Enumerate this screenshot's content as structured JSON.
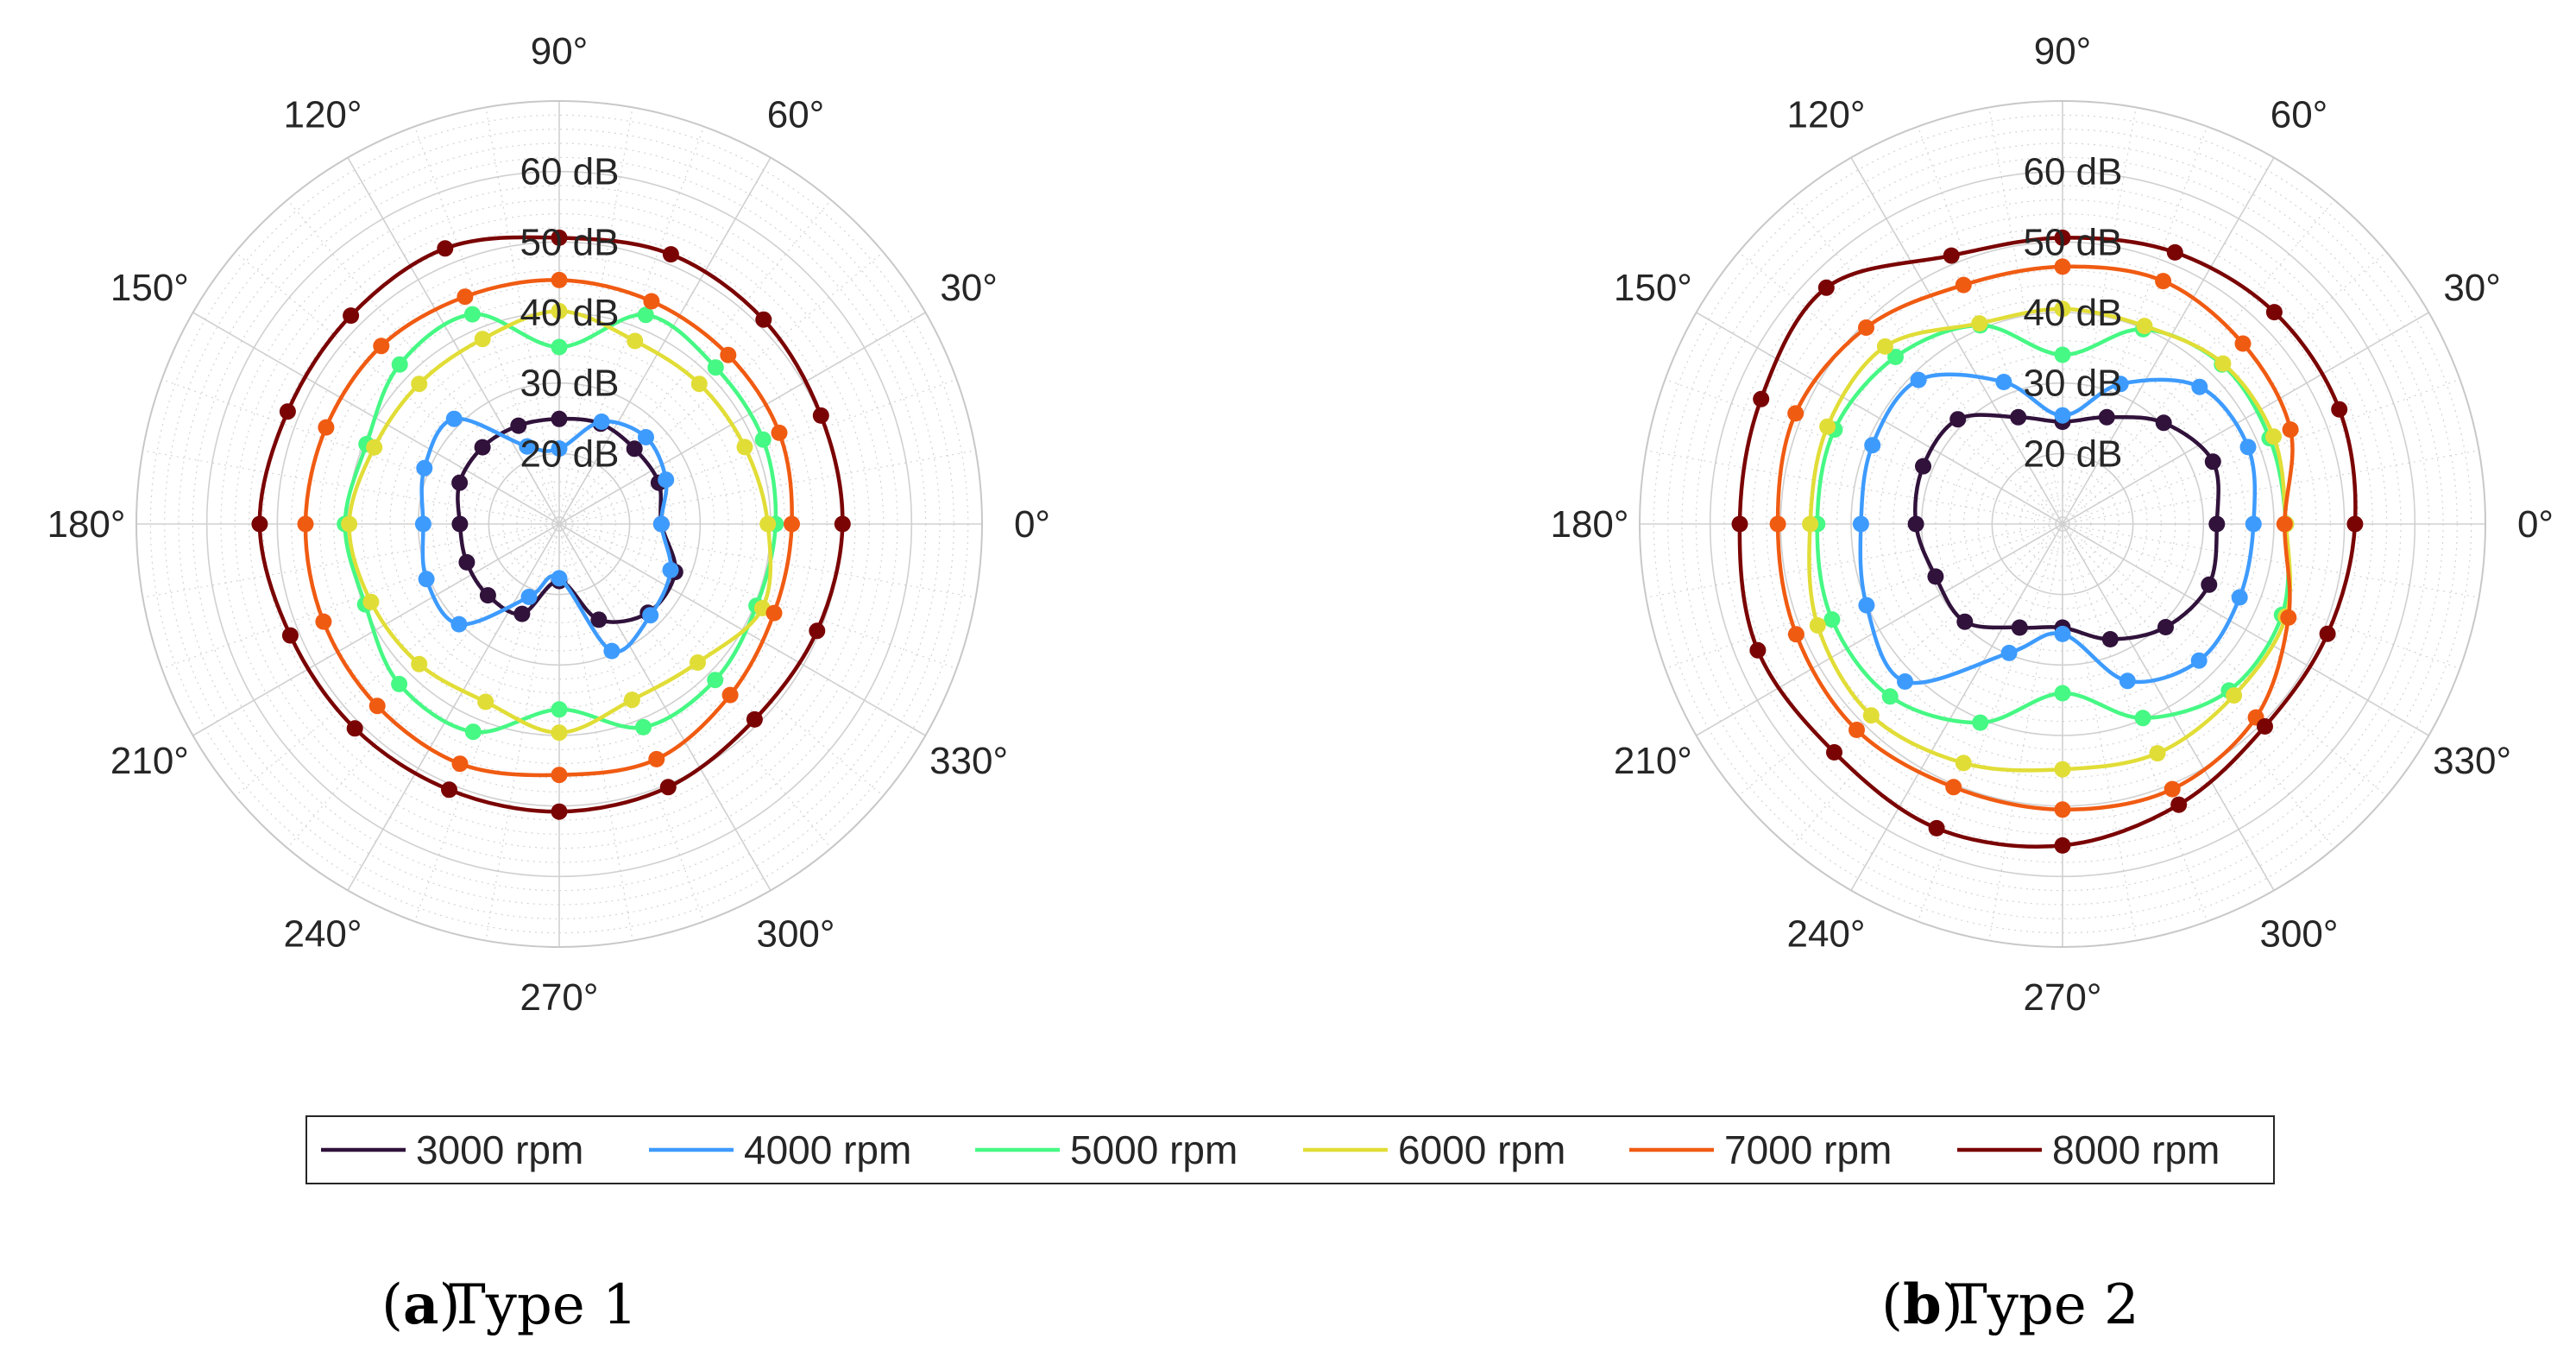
{
  "chart_data": [
    {
      "type": "polar-line",
      "panel_label": "(a)",
      "caption": "Type 1",
      "theta_unit": "deg",
      "theta": [
        0,
        22.5,
        45,
        67.5,
        90,
        112.5,
        135,
        157.5,
        180,
        202.5,
        225,
        247.5,
        270,
        292.5,
        315,
        337.5
      ],
      "rlim": [
        10,
        70
      ],
      "r_ticks": [
        20,
        30,
        40,
        50,
        60
      ],
      "r_tick_labels": [
        "20 dB",
        "30 dB",
        "40 dB",
        "50 dB",
        "60 dB"
      ],
      "theta_ticks": [
        0,
        30,
        60,
        90,
        120,
        150,
        180,
        210,
        240,
        270,
        300,
        330
      ],
      "theta_tick_labels": [
        "0°",
        "30°",
        "60°",
        "90°",
        "120°",
        "150°",
        "180°",
        "210°",
        "240°",
        "270°",
        "300°",
        "330°"
      ],
      "series": [
        {
          "name": "3000 rpm",
          "color": "#30123b",
          "values": [
            24.5,
            25.3,
            25.1,
            25.4,
            24.9,
            25.1,
            25.4,
            25.3,
            24.1,
            24.2,
            24.3,
            23.8,
            18.1,
            24.7,
            27.8,
            27.8
          ]
        },
        {
          "name": "4000 rpm",
          "color": "#3e9bfe",
          "values": [
            24.5,
            26.4,
            27.4,
            25.7,
            20.7,
            21.9,
            31.1,
            30.7,
            29.3,
            30.4,
            30.1,
            21.2,
            17.7,
            29.5,
            28.3,
            27.1
          ]
        },
        {
          "name": "5000 rpm",
          "color": "#46f884",
          "values": [
            40.7,
            41.3,
            41.4,
            42.1,
            35.1,
            42.2,
            42.0,
            39.6,
            40.4,
            39.8,
            42.1,
            41.9,
            36.3,
            41.2,
            41.3,
            40.3
          ]
        },
        {
          "name": "6000 rpm",
          "color": "#e1dd37",
          "values": [
            39.6,
            38.5,
            38.1,
            38.1,
            40.2,
            38.4,
            38.1,
            38.4,
            39.8,
            38.9,
            38.1,
            37.3,
            39.6,
            37.0,
            37.8,
            41.2
          ]
        },
        {
          "name": "7000 rpm",
          "color": "#f05b12",
          "values": [
            43.0,
            43.8,
            43.9,
            44.2,
            44.6,
            44.9,
            45.7,
            45.8,
            46.0,
            46.2,
            46.5,
            46.8,
            45.6,
            46.1,
            44.3,
            43.0
          ]
        },
        {
          "name": "8000 rpm",
          "color": "#7a0403",
          "values": [
            50.2,
            50.2,
            51.0,
            51.4,
            50.6,
            52.3,
            51.8,
            51.7,
            52.5,
            51.3,
            51.0,
            50.8,
            50.8,
            50.4,
            49.2,
            49.6
          ]
        }
      ]
    },
    {
      "type": "polar-line",
      "panel_label": "(b)",
      "caption": "Type 2",
      "theta_unit": "deg",
      "theta": [
        0,
        22.5,
        45,
        67.5,
        90,
        112.5,
        135,
        157.5,
        180,
        202.5,
        225,
        247.5,
        270,
        292.5,
        315,
        337.5
      ],
      "rlim": [
        10,
        70
      ],
      "r_ticks": [
        20,
        30,
        40,
        50,
        60
      ],
      "r_tick_labels": [
        "20 dB",
        "30 dB",
        "40 dB",
        "50 dB",
        "60 dB"
      ],
      "theta_ticks": [
        0,
        30,
        60,
        90,
        120,
        150,
        180,
        210,
        240,
        270,
        300,
        330
      ],
      "theta_tick_labels": [
        "0°",
        "30°",
        "60°",
        "90°",
        "120°",
        "150°",
        "180°",
        "210°",
        "240°",
        "270°",
        "300°",
        "330°"
      ],
      "series": [
        {
          "name": "3000 rpm",
          "color": "#30123b",
          "values": [
            31.9,
            33.1,
            30.3,
            26.4,
            24.5,
            26.4,
            31.0,
            31.4,
            30.8,
            29.5,
            29.6,
            25.9,
            24.7,
            27.7,
            30.7,
            32.5
          ]
        },
        {
          "name": "4000 rpm",
          "color": "#3e9bfe",
          "values": [
            37.1,
            38.5,
            37.5,
            31.5,
            25.4,
            31.8,
            38.9,
            39.2,
            38.6,
            40.1,
            41.6,
            29.8,
            25.6,
            34.1,
            37.4,
            37.2
          ]
        },
        {
          "name": "5000 rpm",
          "color": "#46f884",
          "values": [
            41.7,
            41.8,
            42.0,
            39.9,
            34.0,
            40.5,
            43.5,
            45.0,
            44.8,
            45.4,
            44.6,
            40.5,
            34.0,
            39.8,
            43.4,
            43.7
          ]
        },
        {
          "name": "6000 rpm",
          "color": "#e1dd37",
          "values": [
            41.7,
            42.4,
            42.2,
            40.4,
            40.5,
            40.8,
            45.6,
            46.1,
            45.8,
            47.6,
            48.4,
            46.7,
            44.8,
            45.2,
            44.4,
            44.3
          ]
        },
        {
          "name": "7000 rpm",
          "color": "#f05b12",
          "values": [
            41.5,
            45.0,
            46.2,
            47.3,
            46.5,
            46.7,
            49.4,
            51.0,
            50.4,
            50.9,
            51.3,
            50.4,
            50.5,
            50.7,
            48.8,
            44.7
          ]
        },
        {
          "name": "8000 rpm",
          "color": "#7a0403",
          "values": [
            51.5,
            52.5,
            52.5,
            51.7,
            50.6,
            51.2,
            57.4,
            56.3,
            55.8,
            56.8,
            55.8,
            56.7,
            55.6,
            53.1,
            50.6,
            50.7
          ]
        }
      ]
    }
  ],
  "legend": {
    "items": [
      "3000 rpm",
      "4000 rpm",
      "5000 rpm",
      "6000 rpm",
      "7000 rpm",
      "8000 rpm"
    ],
    "placement": "bottom-center"
  },
  "captions": [
    {
      "label": "(a)",
      "text": "Type 1"
    },
    {
      "label": "(b)",
      "text": "Type 2"
    }
  ]
}
